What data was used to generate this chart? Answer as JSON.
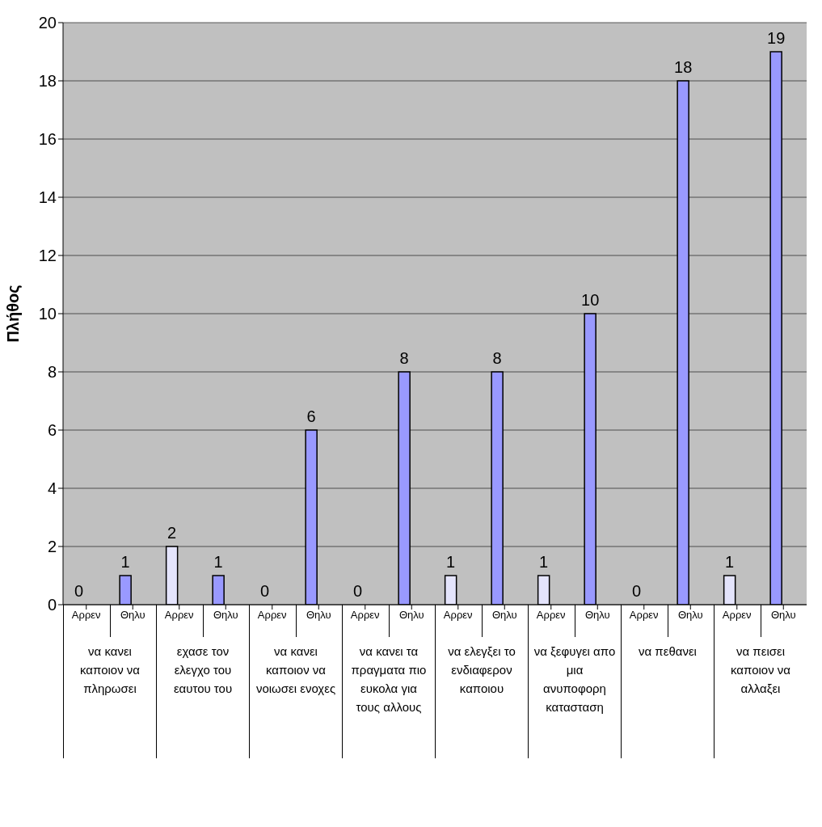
{
  "chart_data": {
    "type": "bar",
    "ylabel": "Πλήθος",
    "categories": [
      "Αρρεν",
      "Θηλυ",
      "Αρρεν",
      "Θηλυ",
      "Αρρεν",
      "Θηλυ",
      "Αρρεν",
      "Θηλυ",
      "Αρρεν",
      "Θηλυ",
      "Αρρεν",
      "Θηλυ",
      "Αρρεν",
      "Θηλυ",
      "Αρρεν",
      "Θηλυ"
    ],
    "values": [
      0,
      1,
      2,
      1,
      0,
      6,
      0,
      8,
      1,
      8,
      1,
      10,
      0,
      18,
      1,
      19
    ],
    "colors": [
      "#e4e4fc",
      "#9999ff",
      "#e4e4fc",
      "#9999ff",
      "#e4e4fc",
      "#9999ff",
      "#e4e4fc",
      "#9999ff",
      "#e4e4fc",
      "#9999ff",
      "#e4e4fc",
      "#9999ff",
      "#e4e4fc",
      "#9999ff",
      "#e4e4fc",
      "#9999ff"
    ],
    "ylim": [
      0,
      20
    ],
    "yticks": [
      0,
      2,
      4,
      6,
      8,
      10,
      12,
      14,
      16,
      18,
      20
    ],
    "grid": "y",
    "data_labels": true,
    "annotations": [
      "να κανει καποιον να πληρωσει",
      "εχασε τον ελεγχο του εαυτου του",
      "να κανει καποιον να νοιωσει ενοχες",
      "να κανει τα πραγματα πιο ευκολα για τους αλλους",
      "να ελεγξει το ενδιαφερον καποιου",
      "να ξεφυγει απο μια ανυποφορη κατασταση",
      "να πεθανει",
      "να πεισει καποιον να αλλαξει"
    ]
  }
}
